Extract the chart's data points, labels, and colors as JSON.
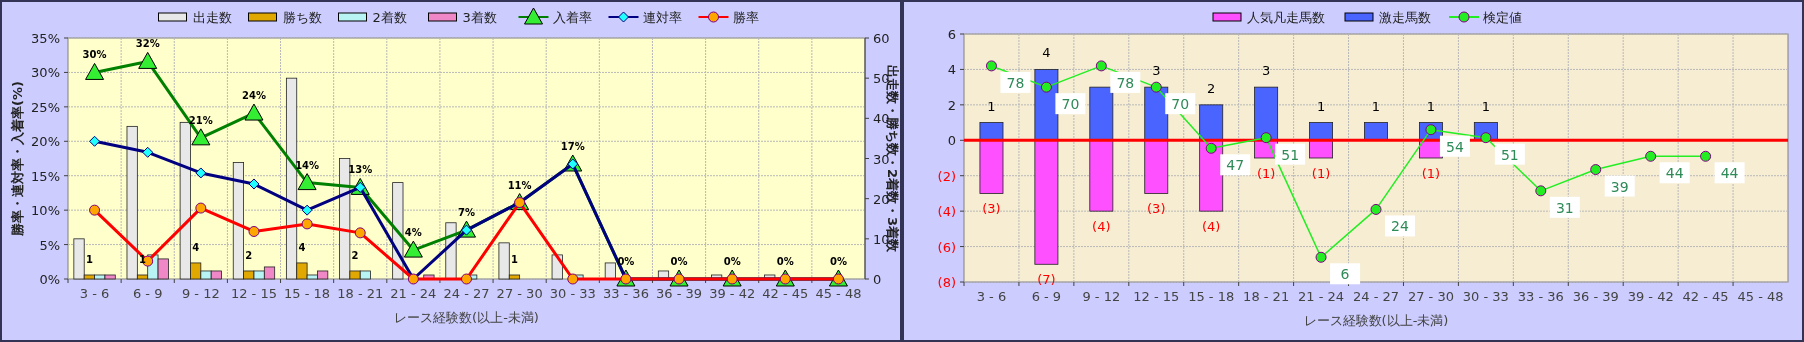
{
  "chart_data": [
    {
      "type": "bar",
      "categories": [
        "3 - 6",
        "6 - 9",
        "9 - 12",
        "12 - 15",
        "15 - 18",
        "18 - 21",
        "21 - 24",
        "24 - 27",
        "27 - 30",
        "30 - 33",
        "33 - 36",
        "36 - 39",
        "39 - 42",
        "42 - 45",
        "45 - 48"
      ],
      "xlabel": "レース経験数(以上-未満)",
      "ylabel": "勝率・連対率・入着率(%)",
      "y2label": "出走数・勝ち数・2着数・3着数",
      "ylim": [
        0,
        35
      ],
      "yticks": [
        {
          "value": 0,
          "label": "0%"
        },
        {
          "value": 5,
          "label": "5%"
        },
        {
          "value": 10,
          "label": "10%"
        },
        {
          "value": 15,
          "label": "15%"
        },
        {
          "value": 20,
          "label": "20%"
        },
        {
          "value": 25,
          "label": "25%"
        },
        {
          "value": 30,
          "label": "30%"
        },
        {
          "value": 35,
          "label": "35%"
        }
      ],
      "y2lim": [
        0,
        60
      ],
      "y2ticks": [
        0,
        10,
        20,
        30,
        40,
        50,
        60
      ],
      "grid": true,
      "legend": "top",
      "series": [
        {
          "name": "出走数",
          "axis": "y2",
          "color": "#e8e8e8",
          "values": [
            10,
            38,
            39,
            29,
            50,
            30,
            24,
            14,
            9,
            6,
            4,
            2,
            1,
            1,
            0
          ]
        },
        {
          "name": "勝ち数",
          "axis": "y2",
          "color": "#e0a800",
          "values": [
            1,
            1,
            4,
            2,
            4,
            2,
            0,
            0,
            1,
            0,
            0,
            0,
            0,
            0,
            0
          ],
          "value_labels": [
            "1",
            "1",
            "4",
            "2",
            "4",
            "2",
            null,
            null,
            "1",
            null,
            null,
            null,
            null,
            null,
            null
          ]
        },
        {
          "name": "2着数",
          "axis": "y2",
          "color": "#b8f4f4",
          "values": [
            1,
            6,
            2,
            2,
            1,
            2,
            0,
            1,
            0,
            1,
            0,
            0,
            0,
            0,
            0
          ]
        },
        {
          "name": "3着数",
          "axis": "y2",
          "color": "#f088c8",
          "values": [
            1,
            5,
            2,
            3,
            2,
            0,
            1,
            0,
            0,
            0,
            0,
            0,
            0,
            0,
            0
          ]
        },
        {
          "name": "入着率",
          "type": "line",
          "axis": "y",
          "color": "#008000",
          "marker": "triangle",
          "values": [
            30,
            31.6,
            20.5,
            24.1,
            14,
            13.3,
            4.2,
            7.1,
            11.1,
            16.7,
            0,
            0,
            0,
            0,
            0
          ],
          "value_labels": [
            "30%",
            "32%",
            "21%",
            "24%",
            "14%",
            "13%",
            "4%",
            "7%",
            "11%",
            "17%",
            "0%",
            "0%",
            "0%",
            "0%",
            "0%"
          ]
        },
        {
          "name": "連対率",
          "type": "line",
          "axis": "y",
          "color": "#000080",
          "marker": "diamond",
          "values": [
            20,
            18.4,
            15.4,
            13.8,
            10,
            13.3,
            0,
            7.1,
            11.1,
            16.7,
            0,
            0,
            0,
            0,
            0
          ]
        },
        {
          "name": "勝率",
          "type": "line",
          "axis": "y",
          "color": "#ff0000",
          "marker": "circle",
          "values": [
            10,
            2.6,
            10.3,
            6.9,
            8,
            6.7,
            0,
            0,
            11.1,
            0,
            0,
            0,
            0,
            0,
            0
          ]
        }
      ]
    },
    {
      "type": "bar",
      "categories": [
        "3 - 6",
        "6 - 9",
        "9 - 12",
        "12 - 15",
        "15 - 18",
        "18 - 21",
        "21 - 24",
        "24 - 27",
        "27 - 30",
        "30 - 33",
        "33 - 36",
        "36 - 39",
        "39 - 42",
        "42 - 45",
        "45 - 48"
      ],
      "xlabel": "レース経験数(以上-未満)",
      "stacked": true,
      "ylim": [
        -8,
        6
      ],
      "yticks": [
        {
          "value": -8,
          "label": "(8)"
        },
        {
          "value": -6,
          "label": "(6)"
        },
        {
          "value": -4,
          "label": "(4)"
        },
        {
          "value": -2,
          "label": "(2)"
        },
        0,
        2,
        4,
        6
      ],
      "y2lim": [
        -3.3,
        90
      ],
      "grid": true,
      "legend": "top",
      "ref_lines": [
        {
          "axis": "y",
          "value": 0,
          "color": "#ff0000"
        }
      ],
      "series": [
        {
          "name": "人気凡走馬数",
          "axis": "y",
          "color": "#ff50ff",
          "values": [
            -3,
            -7,
            -4,
            -3,
            -4,
            -1,
            -1,
            null,
            -1,
            null,
            null,
            null,
            null,
            null,
            null
          ],
          "value_labels": [
            "(3)",
            "(7)",
            "(4)",
            "(3)",
            "(4)",
            "(1)",
            "(1)",
            null,
            "(1)",
            null,
            null,
            null,
            null,
            null,
            null
          ]
        },
        {
          "name": "激走馬数",
          "axis": "y",
          "color": "#4a64ff",
          "values": [
            1,
            4,
            3,
            3,
            2,
            3,
            1,
            1,
            1,
            1,
            null,
            null,
            null,
            null,
            null
          ],
          "value_labels": [
            "1",
            "4",
            null,
            "3",
            "2",
            "3",
            "1",
            "1",
            "1",
            "1",
            null,
            null,
            null,
            null,
            null
          ]
        },
        {
          "name": "検定値",
          "type": "line",
          "axis": "y2",
          "color": "#22ee22",
          "marker": "circle",
          "values": [
            78,
            70,
            78,
            70,
            47,
            51,
            6,
            24,
            54,
            51,
            31,
            39,
            44,
            44,
            null
          ],
          "value_labels": [
            "78",
            "70",
            "78",
            "70",
            "47",
            "51",
            "6",
            "24",
            "54",
            "51",
            "31",
            "39",
            "44",
            "44",
            null
          ]
        }
      ]
    }
  ]
}
